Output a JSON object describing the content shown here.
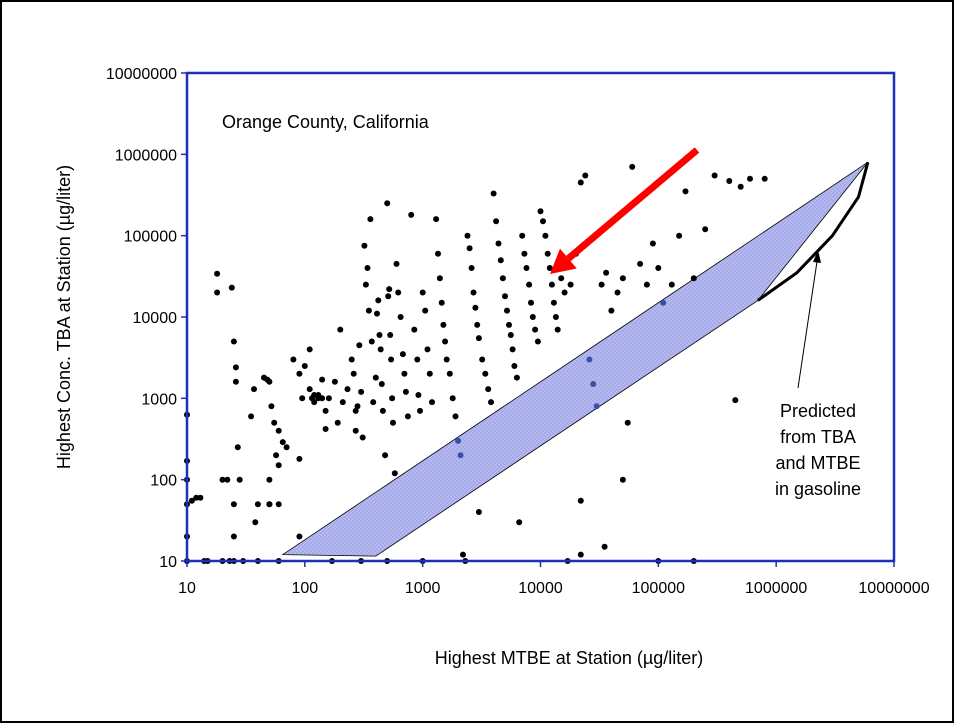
{
  "chart_data": {
    "type": "scatter",
    "title": "",
    "annotation_location": "Orange County, California",
    "annotation_prediction": [
      "Predicted",
      "from TBA",
      "and MTBE",
      "in gasoline"
    ],
    "xlabel": "Highest MTBE at Station (µg/liter)",
    "ylabel": "Highest Conc. TBA at Station (µg/liter)",
    "x_scale": "log",
    "y_scale": "log",
    "xlim": [
      10,
      10000000
    ],
    "ylim": [
      10,
      10000000
    ],
    "x_ticks": [
      "10",
      "100",
      "1000",
      "10000",
      "100000",
      "1000000",
      "10000000"
    ],
    "y_ticks": [
      "10",
      "100",
      "1000",
      "10000",
      "100000",
      "1000000",
      "10000000"
    ],
    "grid": false,
    "colors": {
      "points": "#000000",
      "points_inside_band": "#3b4fa8",
      "band_fill": "#b3b8f0",
      "axes": "#1f2fb8",
      "arrow": "#ff0000"
    },
    "prediction_band": {
      "polygon": [
        [
          65,
          12
        ],
        [
          400,
          11.5
        ],
        [
          700000,
          16000
        ],
        [
          6000000,
          800000
        ]
      ],
      "predicted_curve": [
        [
          700000,
          16000
        ],
        [
          1500000,
          35000
        ],
        [
          3000000,
          100000
        ],
        [
          5000000,
          300000
        ],
        [
          6000000,
          800000
        ]
      ]
    },
    "highlight_arrow": {
      "from": [
        200000,
        900000
      ],
      "to": [
        11000000,
        27000
      ]
    },
    "points": [
      [
        10,
        10
      ],
      [
        10,
        20
      ],
      [
        10,
        50
      ],
      [
        10,
        100
      ],
      [
        10,
        170
      ],
      [
        10,
        630
      ],
      [
        11,
        55
      ],
      [
        12,
        60
      ],
      [
        13,
        60
      ],
      [
        14,
        10
      ],
      [
        15,
        10
      ],
      [
        18,
        34000
      ],
      [
        18,
        20000
      ],
      [
        20,
        100
      ],
      [
        20,
        10
      ],
      [
        22,
        100
      ],
      [
        23,
        10
      ],
      [
        24,
        23000
      ],
      [
        25,
        5000
      ],
      [
        25,
        50
      ],
      [
        25,
        20
      ],
      [
        25,
        10
      ],
      [
        26,
        2400
      ],
      [
        26,
        1600
      ],
      [
        27,
        250
      ],
      [
        28,
        100
      ],
      [
        30,
        10
      ],
      [
        35,
        600
      ],
      [
        37,
        1300
      ],
      [
        38,
        30
      ],
      [
        40,
        50
      ],
      [
        40,
        10
      ],
      [
        45,
        1800
      ],
      [
        48,
        1700
      ],
      [
        50,
        50
      ],
      [
        50,
        100
      ],
      [
        50,
        50
      ],
      [
        50,
        1600
      ],
      [
        52,
        800
      ],
      [
        55,
        500
      ],
      [
        57,
        200
      ],
      [
        60,
        400
      ],
      [
        60,
        150
      ],
      [
        60,
        50
      ],
      [
        60,
        10
      ],
      [
        65,
        290
      ],
      [
        70,
        250
      ],
      [
        80,
        3000
      ],
      [
        90,
        2000
      ],
      [
        90,
        180
      ],
      [
        90,
        20
      ],
      [
        95,
        1000
      ],
      [
        100,
        2500
      ],
      [
        110,
        1300
      ],
      [
        110,
        4000
      ],
      [
        115,
        1000
      ],
      [
        120,
        900
      ],
      [
        120,
        1100
      ],
      [
        130,
        1000
      ],
      [
        130,
        1100
      ],
      [
        140,
        1700
      ],
      [
        140,
        1000
      ],
      [
        150,
        700
      ],
      [
        150,
        420
      ],
      [
        160,
        1000
      ],
      [
        170,
        10
      ],
      [
        180,
        1600
      ],
      [
        190,
        500
      ],
      [
        200,
        7000
      ],
      [
        210,
        900
      ],
      [
        230,
        1300
      ],
      [
        250,
        3000
      ],
      [
        260,
        2000
      ],
      [
        270,
        700
      ],
      [
        270,
        400
      ],
      [
        280,
        800
      ],
      [
        290,
        4500
      ],
      [
        300,
        1200
      ],
      [
        310,
        330
      ],
      [
        320,
        75000
      ],
      [
        330,
        25000
      ],
      [
        340,
        40000
      ],
      [
        350,
        12000
      ],
      [
        360,
        160000
      ],
      [
        370,
        5000
      ],
      [
        380,
        900
      ],
      [
        400,
        1800
      ],
      [
        410,
        11000
      ],
      [
        420,
        16000
      ],
      [
        430,
        6000
      ],
      [
        440,
        4000
      ],
      [
        450,
        1500
      ],
      [
        460,
        700
      ],
      [
        480,
        200
      ],
      [
        500,
        250000
      ],
      [
        510,
        18000
      ],
      [
        520,
        22000
      ],
      [
        530,
        6000
      ],
      [
        540,
        3000
      ],
      [
        550,
        1000
      ],
      [
        560,
        500
      ],
      [
        580,
        120
      ],
      [
        600,
        45000
      ],
      [
        620,
        20000
      ],
      [
        650,
        10000
      ],
      [
        680,
        3500
      ],
      [
        700,
        2000
      ],
      [
        720,
        1200
      ],
      [
        750,
        600
      ],
      [
        800,
        180000
      ],
      [
        850,
        7000
      ],
      [
        900,
        3000
      ],
      [
        920,
        1100
      ],
      [
        950,
        700
      ],
      [
        1000,
        20000
      ],
      [
        1050,
        12000
      ],
      [
        1100,
        4000
      ],
      [
        1150,
        2000
      ],
      [
        1200,
        900
      ],
      [
        1300,
        160000
      ],
      [
        1350,
        60000
      ],
      [
        1400,
        30000
      ],
      [
        1450,
        15000
      ],
      [
        1500,
        8000
      ],
      [
        1550,
        5000
      ],
      [
        1600,
        3000
      ],
      [
        1700,
        2000
      ],
      [
        1800,
        1000
      ],
      [
        1900,
        600
      ],
      [
        2000,
        300
      ],
      [
        2100,
        200
      ],
      [
        2200,
        12
      ],
      [
        2300,
        10
      ],
      [
        2400,
        100000
      ],
      [
        2500,
        70000
      ],
      [
        2600,
        40000
      ],
      [
        2700,
        20000
      ],
      [
        2800,
        13000
      ],
      [
        2900,
        8000
      ],
      [
        3000,
        5500
      ],
      [
        3200,
        3000
      ],
      [
        3400,
        2000
      ],
      [
        3600,
        1300
      ],
      [
        3800,
        900
      ],
      [
        4000,
        330000
      ],
      [
        4200,
        150000
      ],
      [
        4400,
        80000
      ],
      [
        4600,
        50000
      ],
      [
        4800,
        30000
      ],
      [
        5000,
        18000
      ],
      [
        5200,
        12000
      ],
      [
        5400,
        8000
      ],
      [
        5600,
        6000
      ],
      [
        5800,
        4000
      ],
      [
        6000,
        2500
      ],
      [
        6300,
        1800
      ],
      [
        6600,
        30
      ],
      [
        7000,
        100000
      ],
      [
        7300,
        60000
      ],
      [
        7600,
        40000
      ],
      [
        8000,
        25000
      ],
      [
        8300,
        15000
      ],
      [
        8600,
        10000
      ],
      [
        9000,
        7000
      ],
      [
        9500,
        5000
      ],
      [
        10000,
        200000
      ],
      [
        10500,
        150000
      ],
      [
        11000,
        100000
      ],
      [
        11500,
        60000
      ],
      [
        12000,
        40000
      ],
      [
        12500,
        25000
      ],
      [
        13000,
        15000
      ],
      [
        13500,
        10000
      ],
      [
        14000,
        7000
      ],
      [
        15000,
        30000
      ],
      [
        16000,
        20000
      ],
      [
        17000,
        10
      ],
      [
        18000,
        25000
      ],
      [
        20000,
        60000
      ],
      [
        22000,
        450000
      ],
      [
        24000,
        550000
      ],
      [
        26000,
        3000
      ],
      [
        28000,
        1500
      ],
      [
        30000,
        800
      ],
      [
        33000,
        25000
      ],
      [
        36000,
        35000
      ],
      [
        40000,
        12000
      ],
      [
        45000,
        20000
      ],
      [
        50000,
        30000
      ],
      [
        55000,
        500
      ],
      [
        60000,
        700000
      ],
      [
        70000,
        45000
      ],
      [
        80000,
        25000
      ],
      [
        90000,
        80000
      ],
      [
        100000,
        40000
      ],
      [
        110000,
        15000
      ],
      [
        130000,
        25000
      ],
      [
        150000,
        100000
      ],
      [
        170000,
        350000
      ],
      [
        200000,
        30000
      ],
      [
        250000,
        120000
      ],
      [
        300000,
        550000
      ],
      [
        400000,
        470000
      ],
      [
        450000,
        950
      ],
      [
        500000,
        400000
      ],
      [
        600000,
        500000
      ],
      [
        800000,
        500000
      ],
      [
        22000,
        12
      ],
      [
        22000,
        55
      ],
      [
        50000,
        100
      ],
      [
        35000,
        15
      ],
      [
        3000,
        40
      ],
      [
        100000,
        10
      ],
      [
        200000,
        10
      ],
      [
        1000,
        10
      ],
      [
        500,
        10
      ],
      [
        300,
        10
      ]
    ]
  }
}
